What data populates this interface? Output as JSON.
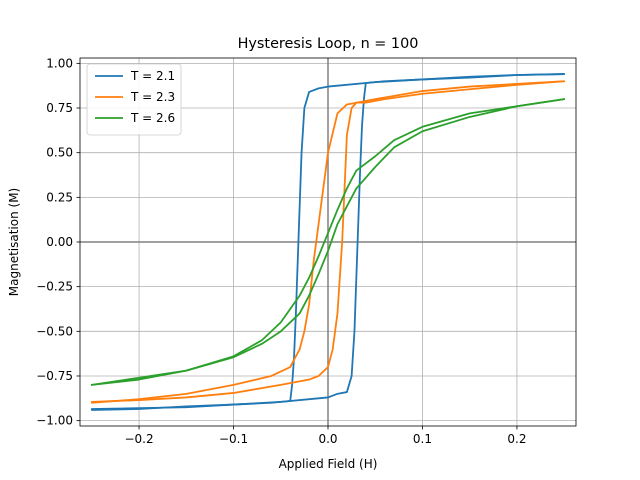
{
  "chart_data": {
    "type": "line",
    "title": "Hysteresis Loop, n = 100",
    "xlabel": "Applied Field (H)",
    "ylabel": "Magnetisation (M)",
    "xlim": [
      -0.2625,
      0.2625
    ],
    "ylim": [
      -1.03,
      1.03
    ],
    "xticks": [
      -0.2,
      -0.1,
      0.0,
      0.1,
      0.2
    ],
    "xtick_labels": [
      "−0.2",
      "−0.1",
      "0.0",
      "0.1",
      "0.2"
    ],
    "yticks": [
      -1.0,
      -0.75,
      -0.5,
      -0.25,
      0.0,
      0.25,
      0.5,
      0.75,
      1.0
    ],
    "ytick_labels": [
      "−1.00",
      "−0.75",
      "−0.50",
      "−0.25",
      "0.00",
      "0.25",
      "0.50",
      "0.75",
      "1.00"
    ],
    "grid": true,
    "reference_lines": {
      "x": 0,
      "y": 0,
      "color": "#808080"
    },
    "legend_position": "top-left",
    "series": [
      {
        "name": "T = 2.1",
        "color": "#1f77b4",
        "branches": [
          {
            "x": [
              -0.25,
              -0.2,
              -0.15,
              -0.1,
              -0.05,
              -0.01,
              0.0,
              0.01,
              0.02,
              0.025,
              0.028,
              0.03,
              0.032,
              0.034,
              0.036,
              0.038,
              0.04,
              0.06,
              0.1,
              0.15,
              0.2,
              0.25
            ],
            "y": [
              -0.935,
              -0.93,
              -0.925,
              -0.91,
              -0.895,
              -0.875,
              -0.87,
              -0.85,
              -0.84,
              -0.75,
              -0.5,
              -0.2,
              0.1,
              0.4,
              0.65,
              0.8,
              0.89,
              0.9,
              0.91,
              0.92,
              0.935,
              0.94
            ]
          },
          {
            "x": [
              0.25,
              0.2,
              0.15,
              0.1,
              0.05,
              0.01,
              0.0,
              -0.01,
              -0.02,
              -0.025,
              -0.028,
              -0.03,
              -0.032,
              -0.034,
              -0.036,
              -0.038,
              -0.04,
              -0.06,
              -0.1,
              -0.15,
              -0.2,
              -0.25
            ],
            "y": [
              0.94,
              0.935,
              0.925,
              0.91,
              0.895,
              0.875,
              0.87,
              0.86,
              0.84,
              0.75,
              0.5,
              0.2,
              -0.1,
              -0.4,
              -0.65,
              -0.8,
              -0.89,
              -0.9,
              -0.91,
              -0.92,
              -0.935,
              -0.94
            ]
          }
        ]
      },
      {
        "name": "T = 2.3",
        "color": "#ff7f0e",
        "branches": [
          {
            "x": [
              -0.25,
              -0.2,
              -0.15,
              -0.1,
              -0.05,
              -0.02,
              -0.01,
              0.0,
              0.005,
              0.01,
              0.015,
              0.02,
              0.025,
              0.03,
              0.04,
              0.06,
              0.1,
              0.15,
              0.2,
              0.25
            ],
            "y": [
              -0.895,
              -0.885,
              -0.87,
              -0.845,
              -0.8,
              -0.77,
              -0.75,
              -0.7,
              -0.6,
              -0.4,
              0.0,
              0.6,
              0.75,
              0.78,
              0.78,
              0.8,
              0.83,
              0.855,
              0.88,
              0.9
            ]
          },
          {
            "x": [
              0.25,
              0.2,
              0.15,
              0.1,
              0.05,
              0.02,
              0.01,
              0.0,
              -0.005,
              -0.01,
              -0.015,
              -0.02,
              -0.025,
              -0.03,
              -0.04,
              -0.06,
              -0.1,
              -0.15,
              -0.2,
              -0.25
            ],
            "y": [
              0.9,
              0.885,
              0.87,
              0.845,
              0.8,
              0.77,
              0.72,
              0.5,
              0.3,
              0.1,
              -0.1,
              -0.35,
              -0.5,
              -0.6,
              -0.7,
              -0.75,
              -0.8,
              -0.85,
              -0.88,
              -0.9
            ]
          }
        ]
      },
      {
        "name": "T = 2.6",
        "color": "#2ca02c",
        "branches": [
          {
            "x": [
              -0.25,
              -0.2,
              -0.15,
              -0.1,
              -0.07,
              -0.05,
              -0.03,
              -0.02,
              -0.01,
              0.0,
              0.01,
              0.02,
              0.03,
              0.05,
              0.07,
              0.1,
              0.15,
              0.2,
              0.25
            ],
            "y": [
              -0.8,
              -0.76,
              -0.72,
              -0.645,
              -0.57,
              -0.5,
              -0.4,
              -0.3,
              -0.18,
              -0.05,
              0.1,
              0.2,
              0.3,
              0.42,
              0.53,
              0.62,
              0.7,
              0.76,
              0.8
            ]
          },
          {
            "x": [
              0.25,
              0.2,
              0.15,
              0.1,
              0.07,
              0.05,
              0.03,
              0.02,
              0.01,
              0.0,
              -0.01,
              -0.02,
              -0.03,
              -0.05,
              -0.07,
              -0.1,
              -0.15,
              -0.2,
              -0.25
            ],
            "y": [
              0.8,
              0.76,
              0.72,
              0.645,
              0.57,
              0.48,
              0.4,
              0.3,
              0.18,
              0.05,
              -0.08,
              -0.2,
              -0.3,
              -0.45,
              -0.55,
              -0.64,
              -0.72,
              -0.77,
              -0.8
            ]
          }
        ]
      }
    ]
  }
}
